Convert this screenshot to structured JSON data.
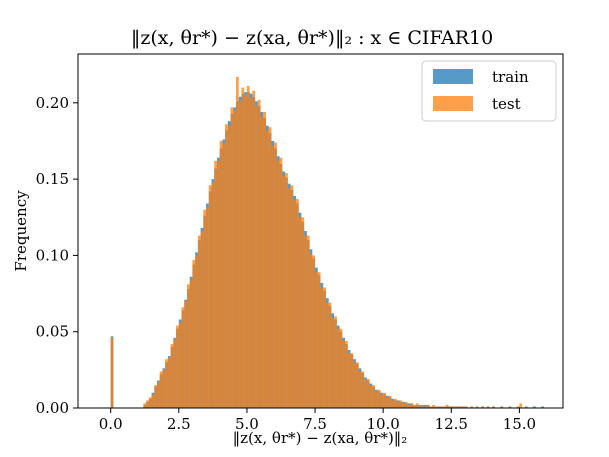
{
  "chart_data": {
    "type": "bar",
    "title": "‖z(x, θr*) − z(xa, θr*)‖₂ : x ∈ CIFAR10",
    "xlabel": "‖z(x, θr*) − z(xa, θr*)‖₂",
    "ylabel": "Frequency",
    "xlim": [
      -1.2,
      16.6
    ],
    "ylim": [
      0,
      0.232
    ],
    "xticks": [
      0.0,
      2.5,
      5.0,
      7.5,
      10.0,
      12.5,
      15.0
    ],
    "xtick_labels": [
      "0.0",
      "2.5",
      "5.0",
      "7.5",
      "10.0",
      "12.5",
      "15.0"
    ],
    "yticks": [
      0.0,
      0.05,
      0.1,
      0.15,
      0.2
    ],
    "ytick_labels": [
      "0.00",
      "0.05",
      "0.10",
      "0.15",
      "0.20"
    ],
    "grid": false,
    "legend_position": "top-right",
    "bin_width": 0.1,
    "series": [
      {
        "name": "train",
        "color": "#1f77b4",
        "bins": [
          [
            0.0,
            0.047
          ],
          [
            1.2,
            0.002
          ],
          [
            1.3,
            0.004
          ],
          [
            1.4,
            0.006
          ],
          [
            1.5,
            0.01
          ],
          [
            1.6,
            0.014
          ],
          [
            1.7,
            0.018
          ],
          [
            1.8,
            0.022
          ],
          [
            1.9,
            0.026
          ],
          [
            2.0,
            0.03
          ],
          [
            2.1,
            0.034
          ],
          [
            2.2,
            0.04
          ],
          [
            2.3,
            0.046
          ],
          [
            2.4,
            0.052
          ],
          [
            2.5,
            0.058
          ],
          [
            2.6,
            0.064
          ],
          [
            2.7,
            0.071
          ],
          [
            2.8,
            0.078
          ],
          [
            2.9,
            0.086
          ],
          [
            3.0,
            0.094
          ],
          [
            3.1,
            0.102
          ],
          [
            3.2,
            0.11
          ],
          [
            3.3,
            0.118
          ],
          [
            3.4,
            0.126
          ],
          [
            3.5,
            0.134
          ],
          [
            3.6,
            0.142
          ],
          [
            3.7,
            0.15
          ],
          [
            3.8,
            0.157
          ],
          [
            3.9,
            0.164
          ],
          [
            4.0,
            0.17
          ],
          [
            4.1,
            0.176
          ],
          [
            4.2,
            0.182
          ],
          [
            4.3,
            0.188
          ],
          [
            4.4,
            0.193
          ],
          [
            4.5,
            0.197
          ],
          [
            4.6,
            0.201
          ],
          [
            4.7,
            0.204
          ],
          [
            4.8,
            0.206
          ],
          [
            4.9,
            0.207
          ],
          [
            5.0,
            0.207
          ],
          [
            5.1,
            0.206
          ],
          [
            5.2,
            0.204
          ],
          [
            5.3,
            0.201
          ],
          [
            5.4,
            0.198
          ],
          [
            5.5,
            0.194
          ],
          [
            5.6,
            0.19
          ],
          [
            5.7,
            0.185
          ],
          [
            5.8,
            0.18
          ],
          [
            5.9,
            0.175
          ],
          [
            6.0,
            0.17
          ],
          [
            6.1,
            0.165
          ],
          [
            6.2,
            0.16
          ],
          [
            6.3,
            0.155
          ],
          [
            6.4,
            0.151
          ],
          [
            6.5,
            0.147
          ],
          [
            6.6,
            0.143
          ],
          [
            6.7,
            0.139
          ],
          [
            6.8,
            0.134
          ],
          [
            6.9,
            0.128
          ],
          [
            7.0,
            0.122
          ],
          [
            7.1,
            0.116
          ],
          [
            7.2,
            0.11
          ],
          [
            7.3,
            0.104
          ],
          [
            7.4,
            0.098
          ],
          [
            7.5,
            0.092
          ],
          [
            7.6,
            0.087
          ],
          [
            7.7,
            0.082
          ],
          [
            7.8,
            0.077
          ],
          [
            7.9,
            0.072
          ],
          [
            8.0,
            0.067
          ],
          [
            8.1,
            0.062
          ],
          [
            8.2,
            0.058
          ],
          [
            8.3,
            0.054
          ],
          [
            8.4,
            0.05
          ],
          [
            8.5,
            0.046
          ],
          [
            8.6,
            0.042
          ],
          [
            8.7,
            0.038
          ],
          [
            8.8,
            0.035
          ],
          [
            8.9,
            0.032
          ],
          [
            9.0,
            0.029
          ],
          [
            9.1,
            0.026
          ],
          [
            9.2,
            0.023
          ],
          [
            9.3,
            0.02
          ],
          [
            9.4,
            0.018
          ],
          [
            9.5,
            0.016
          ],
          [
            9.6,
            0.014
          ],
          [
            9.7,
            0.012
          ],
          [
            9.8,
            0.011
          ],
          [
            9.9,
            0.01
          ],
          [
            10.0,
            0.009
          ],
          [
            10.1,
            0.008
          ],
          [
            10.2,
            0.007
          ],
          [
            10.3,
            0.006
          ],
          [
            10.4,
            0.005
          ],
          [
            10.5,
            0.005
          ],
          [
            10.6,
            0.004
          ],
          [
            10.7,
            0.004
          ],
          [
            10.8,
            0.003
          ],
          [
            10.9,
            0.003
          ],
          [
            11.0,
            0.003
          ],
          [
            11.1,
            0.002
          ],
          [
            11.2,
            0.002
          ],
          [
            11.3,
            0.002
          ],
          [
            11.4,
            0.002
          ],
          [
            11.5,
            0.002
          ],
          [
            11.6,
            0.002
          ],
          [
            11.7,
            0.001
          ],
          [
            11.8,
            0.001
          ],
          [
            11.9,
            0.001
          ],
          [
            12.0,
            0.001
          ],
          [
            12.1,
            0.001
          ],
          [
            12.2,
            0.001
          ],
          [
            12.3,
            0.001
          ],
          [
            12.4,
            0.001
          ],
          [
            12.5,
            0.001
          ],
          [
            12.6,
            0.001
          ],
          [
            12.7,
            0.001
          ],
          [
            12.8,
            0.001
          ],
          [
            12.9,
            0.001
          ],
          [
            13.0,
            0.001
          ],
          [
            13.2,
            0.001
          ],
          [
            13.4,
            0.001
          ],
          [
            13.6,
            0.001
          ],
          [
            13.8,
            0.001
          ],
          [
            14.0,
            0.001
          ],
          [
            14.3,
            0.001
          ],
          [
            14.6,
            0.001
          ],
          [
            14.9,
            0.001
          ],
          [
            15.2,
            0.001
          ],
          [
            15.5,
            0.001
          ],
          [
            15.8,
            0.001
          ]
        ]
      },
      {
        "name": "test",
        "color": "#ff7f0e",
        "bins": [
          [
            0.0,
            0.046
          ],
          [
            1.2,
            0.003
          ],
          [
            1.3,
            0.005
          ],
          [
            1.4,
            0.007
          ],
          [
            1.5,
            0.009
          ],
          [
            1.6,
            0.015
          ],
          [
            1.7,
            0.017
          ],
          [
            1.8,
            0.024
          ],
          [
            1.9,
            0.025
          ],
          [
            2.0,
            0.032
          ],
          [
            2.1,
            0.033
          ],
          [
            2.2,
            0.042
          ],
          [
            2.3,
            0.045
          ],
          [
            2.4,
            0.054
          ],
          [
            2.5,
            0.056
          ],
          [
            2.6,
            0.066
          ],
          [
            2.7,
            0.07
          ],
          [
            2.8,
            0.081
          ],
          [
            2.9,
            0.084
          ],
          [
            3.0,
            0.097
          ],
          [
            3.1,
            0.1
          ],
          [
            3.2,
            0.113
          ],
          [
            3.3,
            0.116
          ],
          [
            3.4,
            0.13
          ],
          [
            3.5,
            0.131
          ],
          [
            3.6,
            0.146
          ],
          [
            3.7,
            0.148
          ],
          [
            3.8,
            0.162
          ],
          [
            3.9,
            0.162
          ],
          [
            4.0,
            0.175
          ],
          [
            4.1,
            0.173
          ],
          [
            4.2,
            0.186
          ],
          [
            4.3,
            0.185
          ],
          [
            4.4,
            0.197
          ],
          [
            4.5,
            0.195
          ],
          [
            4.6,
            0.217
          ],
          [
            4.7,
            0.201
          ],
          [
            4.8,
            0.21
          ],
          [
            4.9,
            0.205
          ],
          [
            5.0,
            0.211
          ],
          [
            5.1,
            0.203
          ],
          [
            5.2,
            0.208
          ],
          [
            5.3,
            0.198
          ],
          [
            5.4,
            0.202
          ],
          [
            5.5,
            0.191
          ],
          [
            5.6,
            0.194
          ],
          [
            5.7,
            0.182
          ],
          [
            5.8,
            0.184
          ],
          [
            5.9,
            0.172
          ],
          [
            6.0,
            0.174
          ],
          [
            6.1,
            0.162
          ],
          [
            6.2,
            0.164
          ],
          [
            6.3,
            0.152
          ],
          [
            6.4,
            0.154
          ],
          [
            6.5,
            0.144
          ],
          [
            6.6,
            0.146
          ],
          [
            6.7,
            0.136
          ],
          [
            6.8,
            0.137
          ],
          [
            6.9,
            0.125
          ],
          [
            7.0,
            0.125
          ],
          [
            7.1,
            0.113
          ],
          [
            7.2,
            0.113
          ],
          [
            7.3,
            0.101
          ],
          [
            7.4,
            0.1
          ],
          [
            7.5,
            0.089
          ],
          [
            7.6,
            0.089
          ],
          [
            7.7,
            0.079
          ],
          [
            7.8,
            0.079
          ],
          [
            7.9,
            0.069
          ],
          [
            8.0,
            0.069
          ],
          [
            8.1,
            0.059
          ],
          [
            8.2,
            0.06
          ],
          [
            8.3,
            0.052
          ],
          [
            8.4,
            0.052
          ],
          [
            8.5,
            0.044
          ],
          [
            8.6,
            0.044
          ],
          [
            8.7,
            0.036
          ],
          [
            8.8,
            0.036
          ],
          [
            8.9,
            0.03
          ],
          [
            9.0,
            0.03
          ],
          [
            9.1,
            0.024
          ],
          [
            9.2,
            0.024
          ],
          [
            9.3,
            0.019
          ],
          [
            9.4,
            0.019
          ],
          [
            9.5,
            0.015
          ],
          [
            9.6,
            0.015
          ],
          [
            9.7,
            0.011
          ],
          [
            9.8,
            0.012
          ],
          [
            9.9,
            0.009
          ],
          [
            10.0,
            0.01
          ],
          [
            10.1,
            0.007
          ],
          [
            10.2,
            0.008
          ],
          [
            10.3,
            0.005
          ],
          [
            10.4,
            0.006
          ],
          [
            10.5,
            0.004
          ],
          [
            10.6,
            0.005
          ],
          [
            10.7,
            0.003
          ],
          [
            10.8,
            0.004
          ],
          [
            10.9,
            0.002
          ],
          [
            11.0,
            0.003
          ],
          [
            11.1,
            0.002
          ],
          [
            11.2,
            0.003
          ],
          [
            11.3,
            0.001
          ],
          [
            11.4,
            0.002
          ],
          [
            11.5,
            0.001
          ],
          [
            11.6,
            0.002
          ],
          [
            11.7,
            0.001
          ],
          [
            11.8,
            0.002
          ],
          [
            11.9,
            0.001
          ],
          [
            12.0,
            0.001
          ],
          [
            12.1,
            0.001
          ],
          [
            12.2,
            0.001
          ],
          [
            12.3,
            0.002
          ],
          [
            12.4,
            0.001
          ],
          [
            12.5,
            0.001
          ],
          [
            12.6,
            0.001
          ],
          [
            12.7,
            0.001
          ],
          [
            12.8,
            0.001
          ],
          [
            12.9,
            0.001
          ],
          [
            13.0,
            0.001
          ],
          [
            13.2,
            0.001
          ],
          [
            13.4,
            0.001
          ],
          [
            13.6,
            0.001
          ],
          [
            13.8,
            0.001
          ],
          [
            14.0,
            0.001
          ],
          [
            14.3,
            0.001
          ],
          [
            14.6,
            0.001
          ],
          [
            14.9,
            0.001
          ],
          [
            15.0,
            0.003
          ],
          [
            15.2,
            0.001
          ]
        ]
      }
    ]
  }
}
